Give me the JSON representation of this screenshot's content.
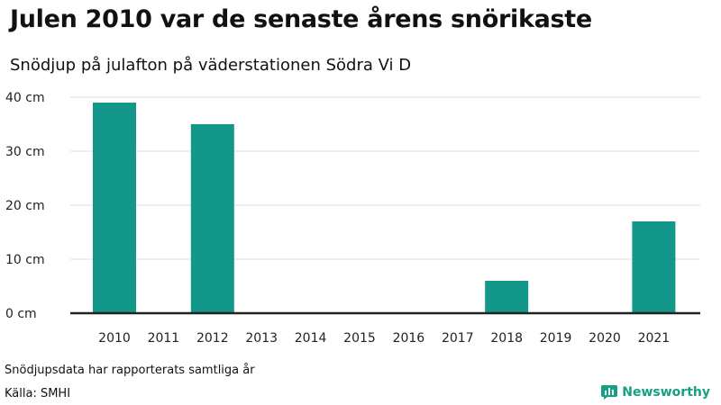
{
  "header": {
    "title": "Julen 2010 var de senaste årens snörikaste",
    "subtitle": "Snödjup på julafton på väderstationen Södra Vi D"
  },
  "footer": {
    "note": "Snödjupsdata har rapporterats samtliga år",
    "source": "Källa: SMHI",
    "brand": "Newsworthy",
    "brand_icon": "bar-chart-logo-icon"
  },
  "colors": {
    "bar": "#13978a",
    "grid": "#dddddd",
    "axis": "#222222",
    "brand": "#16a085"
  },
  "chart_data": {
    "type": "bar",
    "title": "Julen 2010 var de senaste årens snörikaste",
    "subtitle": "Snödjup på julafton på väderstationen Södra Vi D",
    "xlabel": "",
    "ylabel": "",
    "categories": [
      "2010",
      "2011",
      "2012",
      "2013",
      "2014",
      "2015",
      "2016",
      "2017",
      "2018",
      "2019",
      "2020",
      "2021"
    ],
    "values": [
      39,
      0,
      35,
      0,
      0,
      0,
      0,
      0,
      6,
      0,
      0,
      17
    ],
    "ylim": [
      0,
      40
    ],
    "yticks": [
      0,
      10,
      20,
      30,
      40
    ],
    "ytick_labels": [
      "0 cm",
      "10 cm",
      "20 cm",
      "30 cm",
      "40 cm"
    ],
    "grid": true
  }
}
